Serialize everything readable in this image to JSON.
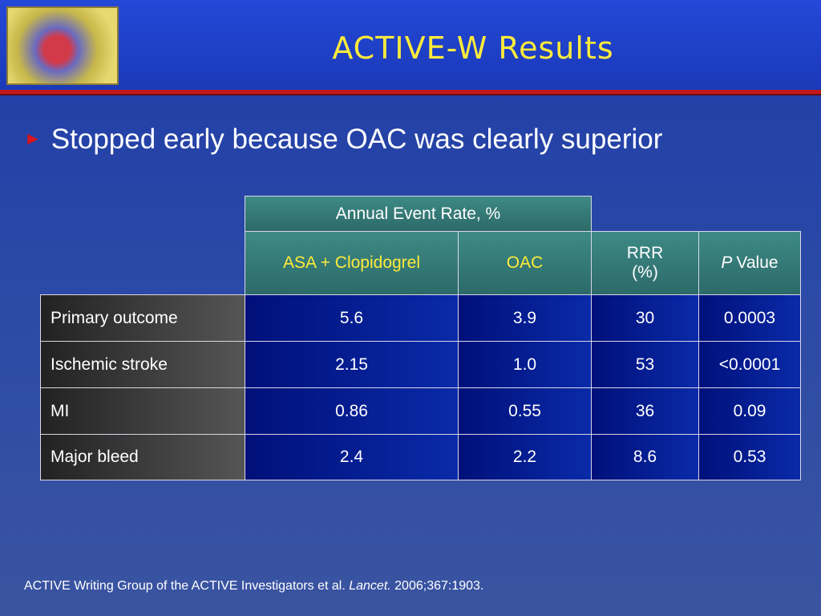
{
  "header": {
    "title": "ACTIVE-W Results"
  },
  "bullet": "Stopped early because OAC was clearly superior",
  "table": {
    "group_header": "Annual Event Rate, %",
    "columns": [
      "ASA + Clopidogrel",
      "OAC",
      "RRR (%)"
    ],
    "p_header": {
      "italic": "P",
      "rest": "Value"
    },
    "rows": [
      [
        "Primary outcome",
        "5.6",
        "3.9",
        "30",
        "0.0003"
      ],
      [
        "Ischemic stroke",
        "2.15",
        "1.0",
        "53",
        "<0.0001"
      ],
      [
        "MI",
        "0.86",
        "0.55",
        "36",
        "0.09"
      ],
      [
        "Major bleed",
        "2.4",
        "2.2",
        "8.6",
        "0.53"
      ]
    ]
  },
  "citation": {
    "authors": "ACTIVE Writing Group of the ACTIVE Investigators et al.",
    "journal": "Lancet.",
    "ref": "2006;367:1903."
  }
}
